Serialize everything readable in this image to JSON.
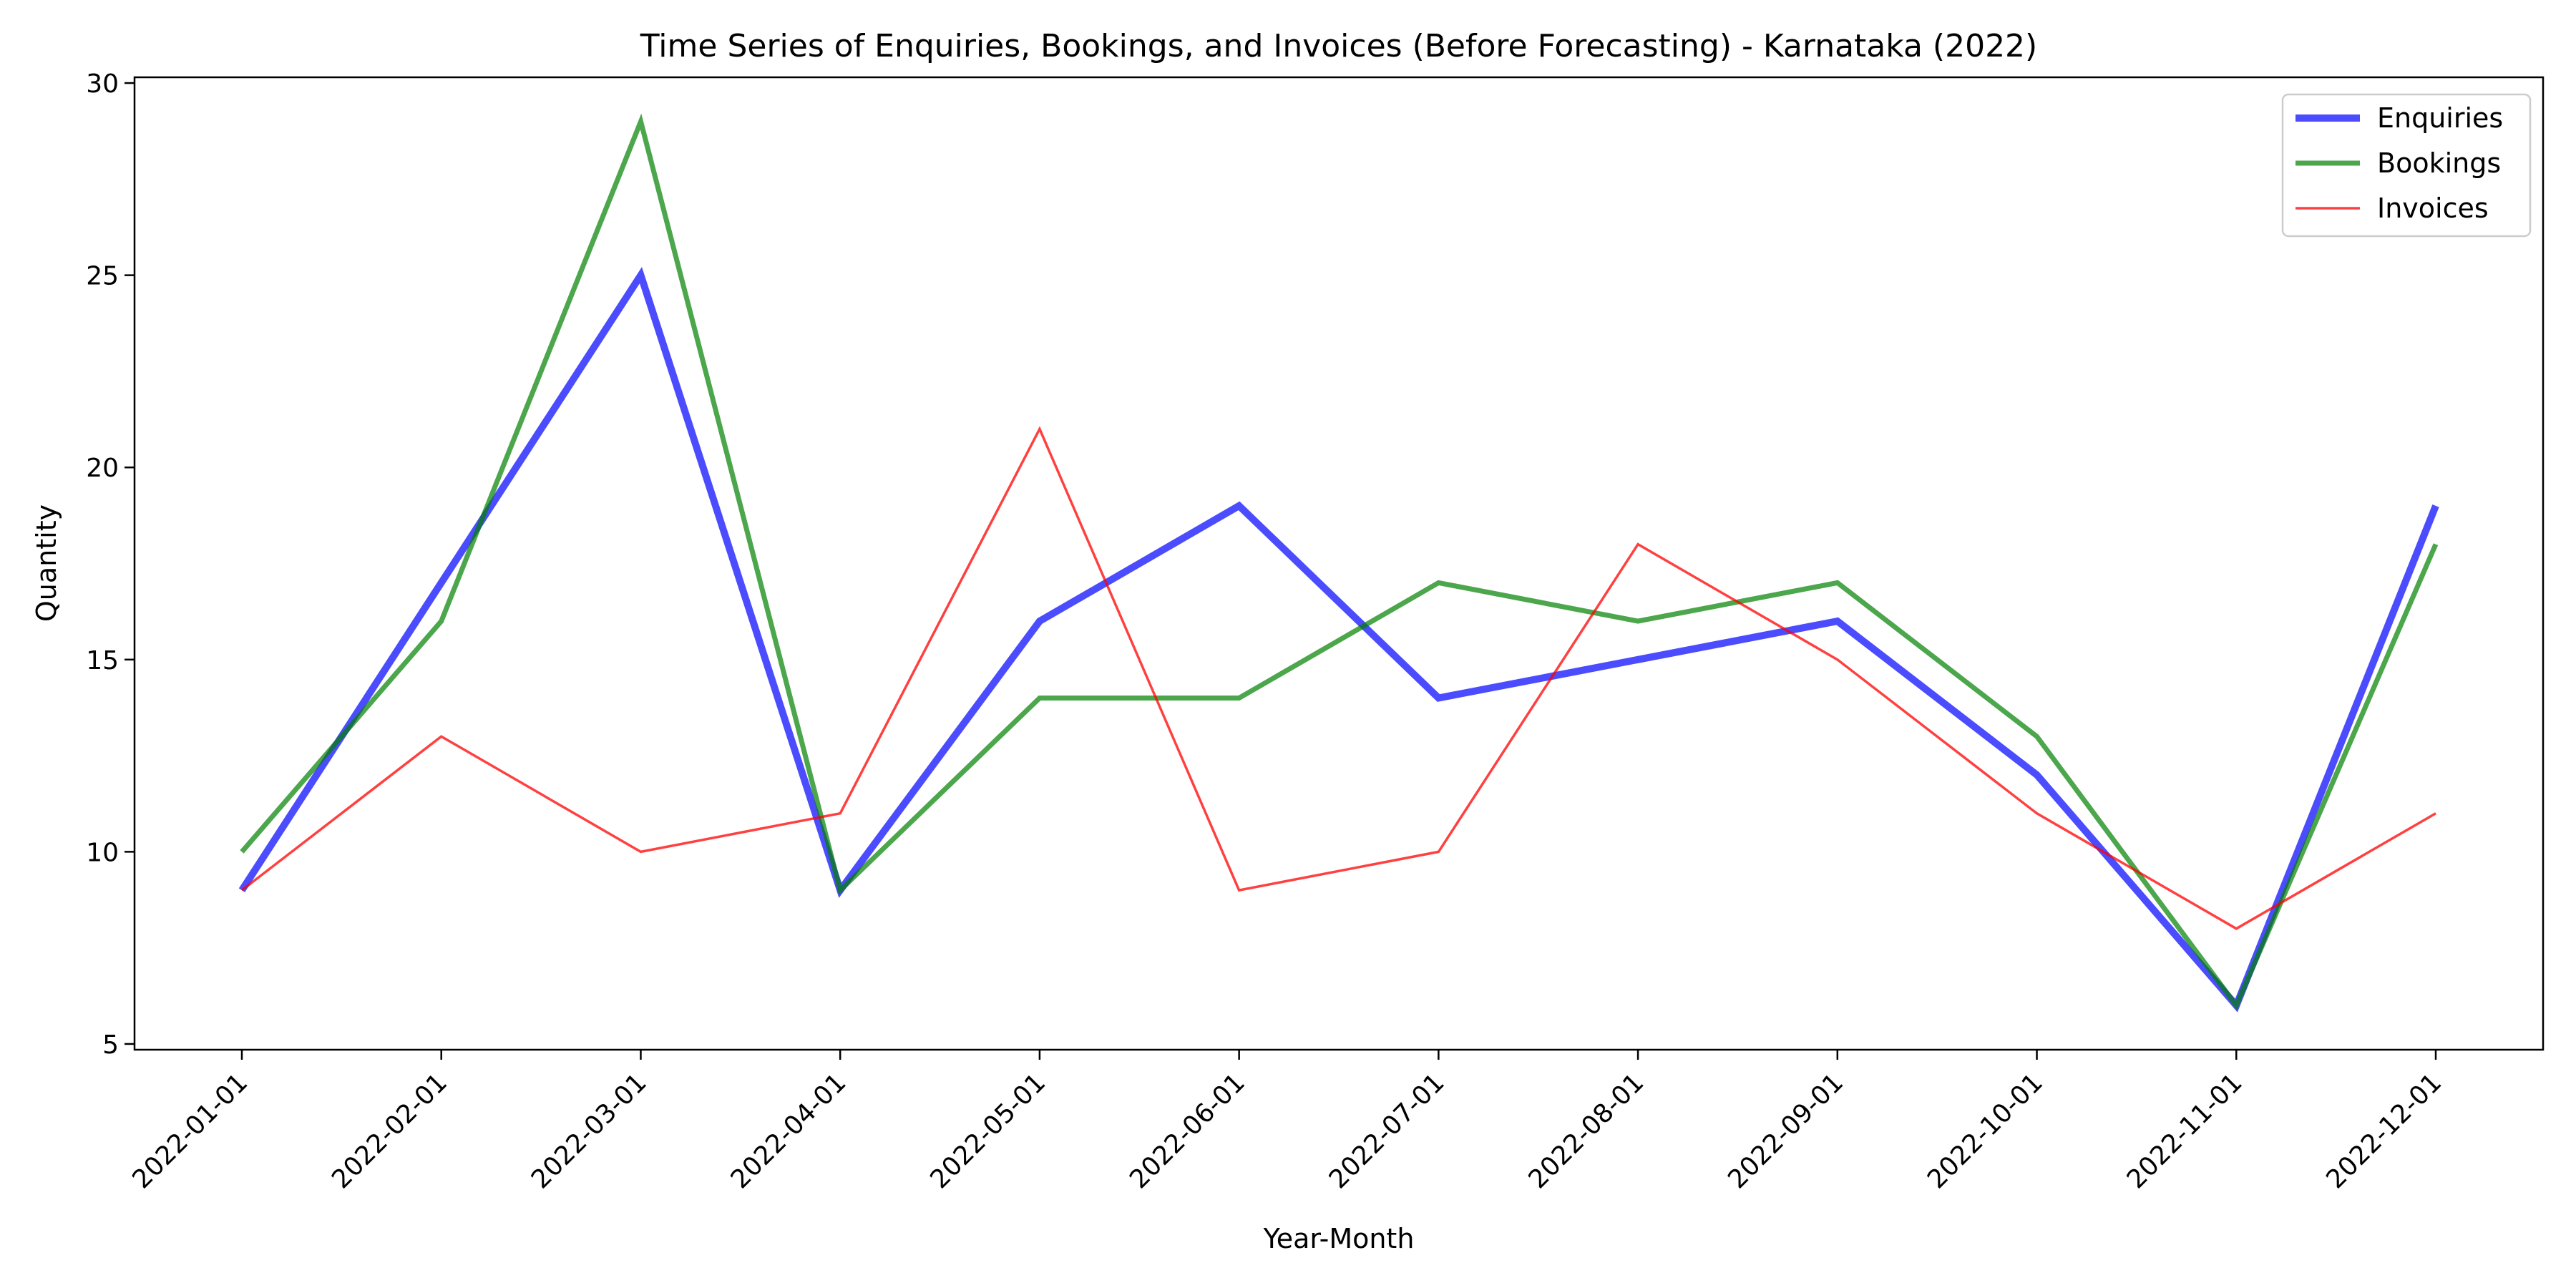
{
  "chart_data": {
    "type": "line",
    "title": "Time Series of Enquiries, Bookings, and Invoices (Before Forecasting) - Karnataka (2022)",
    "xlabel": "Year-Month",
    "ylabel": "Quantity",
    "x": [
      "2022-01-01",
      "2022-02-01",
      "2022-03-01",
      "2022-04-01",
      "2022-05-01",
      "2022-06-01",
      "2022-07-01",
      "2022-08-01",
      "2022-09-01",
      "2022-10-01",
      "2022-11-01",
      "2022-12-01"
    ],
    "ylim": [
      4.85,
      30.15
    ],
    "yticks": [
      5,
      10,
      15,
      20,
      25,
      30
    ],
    "grid": false,
    "legend_position": "top-right",
    "series": [
      {
        "name": "Enquiries",
        "color": "#0000ff",
        "values": [
          9,
          17,
          25,
          9,
          16,
          19,
          14,
          15,
          16,
          12,
          6,
          19
        ]
      },
      {
        "name": "Bookings",
        "color": "#008000",
        "values": [
          10,
          16,
          29,
          9,
          14,
          14,
          17,
          16,
          17,
          13,
          6,
          18
        ]
      },
      {
        "name": "Invoices",
        "color": "#ff0000",
        "values": [
          9,
          13,
          10,
          11,
          21,
          9,
          10,
          18,
          15,
          11,
          8,
          11
        ]
      }
    ]
  }
}
